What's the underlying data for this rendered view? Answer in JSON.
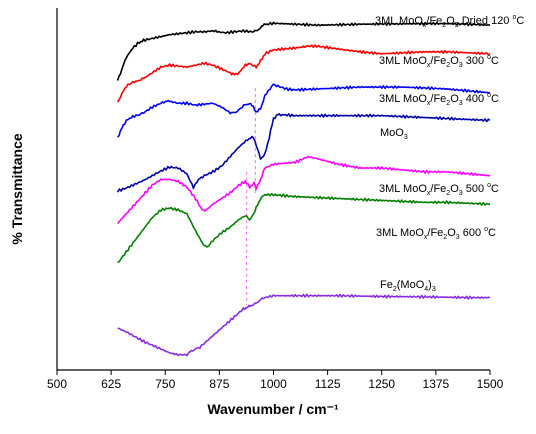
{
  "chart_data": {
    "type": "line",
    "xlabel": "Wavenumber / cm⁻¹",
    "ylabel": "% Transmittance",
    "xlim": [
      500,
      1500
    ],
    "x_ticks": [
      500,
      625,
      750,
      875,
      1000,
      1125,
      1250,
      1375,
      1500
    ],
    "y_ticks_shown": false,
    "grid": false,
    "reference_lines": [
      958,
      938
    ],
    "series": [
      {
        "name": "3ML MoOx/Fe2O3 Dried 120 °C",
        "label_text": [
          "3ML MoO",
          "x",
          "/Fe",
          "2",
          "O",
          "3",
          " Dried 120 ",
          "o",
          "C"
        ],
        "color": "#000000",
        "x": [
          640,
          650,
          660,
          675,
          690,
          700,
          720,
          740,
          760,
          780,
          800,
          820,
          840,
          860,
          870,
          890,
          910,
          930,
          950,
          960,
          970,
          975,
          985,
          1000,
          1050,
          1100,
          1150,
          1200,
          1250,
          1300,
          1350,
          1400,
          1450,
          1500
        ],
        "y": [
          0.7,
          0.76,
          0.82,
          0.87,
          0.9,
          0.91,
          0.92,
          0.93,
          0.94,
          0.945,
          0.95,
          0.955,
          0.955,
          0.96,
          0.955,
          0.95,
          0.955,
          0.96,
          0.955,
          0.96,
          0.975,
          0.99,
          0.995,
          1.0,
          0.995,
          0.99,
          0.992,
          0.995,
          0.996,
          0.997,
          0.998,
          0.998,
          0.995,
          0.99
        ]
      },
      {
        "name": "3ML MoOx/Fe2O3 300 °C",
        "label_text": [
          "3ML MoO",
          "x",
          "/Fe",
          "2",
          "O",
          "3",
          " 300 ",
          "o",
          "C"
        ],
        "color": "#ff0000",
        "x": [
          640,
          650,
          660,
          675,
          690,
          700,
          720,
          740,
          760,
          780,
          800,
          820,
          840,
          860,
          880,
          900,
          910,
          920,
          935,
          945,
          950,
          960,
          970,
          980,
          1000,
          1050,
          1080,
          1100,
          1150,
          1200,
          1250,
          1300,
          1350,
          1400,
          1450,
          1500
        ],
        "y": [
          0.585,
          0.63,
          0.67,
          0.69,
          0.7,
          0.71,
          0.74,
          0.77,
          0.78,
          0.775,
          0.77,
          0.78,
          0.79,
          0.78,
          0.76,
          0.74,
          0.73,
          0.74,
          0.78,
          0.79,
          0.78,
          0.77,
          0.8,
          0.84,
          0.86,
          0.87,
          0.88,
          0.88,
          0.865,
          0.85,
          0.84,
          0.845,
          0.85,
          0.85,
          0.845,
          0.84
        ]
      },
      {
        "name": "3ML MoOx/Fe2O3 400 °C",
        "label_text": [
          "3ML MoO",
          "x",
          "/Fe",
          "2",
          "O",
          "3",
          " 400 ",
          "o",
          "C"
        ],
        "color": "#0000ff",
        "x": [
          640,
          650,
          660,
          675,
          690,
          700,
          720,
          740,
          750,
          760,
          780,
          800,
          820,
          840,
          860,
          880,
          900,
          910,
          920,
          935,
          945,
          950,
          960,
          970,
          980,
          1000,
          1010,
          1030,
          1050,
          1100,
          1150,
          1200,
          1250,
          1300,
          1350,
          1400,
          1450,
          1500
        ],
        "y": [
          0.4,
          0.45,
          0.49,
          0.51,
          0.52,
          0.53,
          0.56,
          0.58,
          0.59,
          0.59,
          0.58,
          0.58,
          0.57,
          0.575,
          0.58,
          0.56,
          0.53,
          0.53,
          0.545,
          0.575,
          0.575,
          0.57,
          0.535,
          0.55,
          0.62,
          0.68,
          0.67,
          0.655,
          0.65,
          0.655,
          0.66,
          0.665,
          0.665,
          0.665,
          0.66,
          0.655,
          0.645,
          0.635
        ]
      },
      {
        "name": "MoO3",
        "label_text": [
          "MoO",
          "3"
        ],
        "color": "#0000aa",
        "x": [
          640,
          660,
          680,
          700,
          720,
          740,
          760,
          780,
          800,
          808,
          815,
          820,
          830,
          840,
          860,
          880,
          900,
          920,
          940,
          950,
          955,
          960,
          970,
          980,
          990,
          1000,
          1010,
          1020,
          1050,
          1100,
          1150,
          1200,
          1250,
          1300,
          1350,
          1400,
          1450,
          1500
        ],
        "y": [
          0.12,
          0.135,
          0.155,
          0.175,
          0.2,
          0.225,
          0.245,
          0.24,
          0.21,
          0.17,
          0.14,
          0.16,
          0.185,
          0.2,
          0.22,
          0.25,
          0.3,
          0.35,
          0.39,
          0.4,
          0.395,
          0.36,
          0.29,
          0.31,
          0.4,
          0.5,
          0.52,
          0.52,
          0.515,
          0.515,
          0.515,
          0.515,
          0.515,
          0.51,
          0.505,
          0.5,
          0.495,
          0.49
        ]
      },
      {
        "name": "3ML MoOx/Fe2O3 500 °C",
        "label_text": [
          "3ML MoO",
          "x",
          "/Fe",
          "2",
          "O",
          "3",
          " 500 ",
          "o",
          "C"
        ],
        "color": "#ff00ff",
        "x": [
          640,
          660,
          680,
          700,
          720,
          740,
          760,
          780,
          800,
          820,
          835,
          845,
          860,
          880,
          900,
          920,
          935,
          945,
          955,
          960,
          970,
          980,
          1000,
          1050,
          1080,
          1100,
          1150,
          1200,
          1250,
          1300,
          1350,
          1400,
          1450,
          1500
        ],
        "y": [
          -0.05,
          0.0,
          0.05,
          0.1,
          0.15,
          0.18,
          0.18,
          0.17,
          0.14,
          0.08,
          0.02,
          0.02,
          0.05,
          0.08,
          0.11,
          0.15,
          0.17,
          0.14,
          0.16,
          0.13,
          0.18,
          0.24,
          0.26,
          0.27,
          0.3,
          0.29,
          0.26,
          0.24,
          0.24,
          0.23,
          0.22,
          0.22,
          0.21,
          0.2
        ]
      },
      {
        "name": "3ML MoOx/Fe2O3 600 °C",
        "label_text": [
          "3ML MoO",
          "x",
          "/Fe",
          "2",
          "O",
          "3",
          " 600 ",
          "o",
          "C"
        ],
        "color": "#008000",
        "x": [
          640,
          660,
          680,
          700,
          720,
          740,
          760,
          780,
          800,
          820,
          840,
          850,
          860,
          880,
          900,
          920,
          935,
          945,
          955,
          960,
          970,
          980,
          1000,
          1050,
          1100,
          1150,
          1200,
          1250,
          1300,
          1350,
          1400,
          1450,
          1500
        ],
        "y": [
          -0.26,
          -0.2,
          -0.14,
          -0.08,
          -0.02,
          0.02,
          0.03,
          0.02,
          0.0,
          -0.09,
          -0.17,
          -0.17,
          -0.14,
          -0.1,
          -0.07,
          -0.03,
          -0.01,
          -0.03,
          0.0,
          0.03,
          0.08,
          0.1,
          0.1,
          0.09,
          0.085,
          0.08,
          0.075,
          0.07,
          0.065,
          0.06,
          0.06,
          0.055,
          0.05
        ]
      },
      {
        "name": "Fe2(MoO4)3",
        "label_text": [
          "Fe",
          "2",
          "(MoO",
          "4",
          ")",
          "3"
        ],
        "color": "#8a2be2",
        "x": [
          640,
          660,
          680,
          700,
          720,
          740,
          760,
          780,
          800,
          810,
          820,
          830,
          850,
          870,
          890,
          910,
          930,
          940,
          950,
          960,
          970,
          980,
          1000,
          1050,
          1100,
          1150,
          1200,
          1250,
          1300,
          1350,
          1400,
          1450,
          1500
        ],
        "y": [
          -0.6,
          -0.62,
          -0.645,
          -0.67,
          -0.69,
          -0.71,
          -0.73,
          -0.74,
          -0.74,
          -0.72,
          -0.71,
          -0.7,
          -0.66,
          -0.62,
          -0.58,
          -0.54,
          -0.5,
          -0.49,
          -0.48,
          -0.47,
          -0.45,
          -0.44,
          -0.43,
          -0.43,
          -0.43,
          -0.43,
          -0.432,
          -0.434,
          -0.435,
          -0.436,
          -0.438,
          -0.44,
          -0.44
        ]
      }
    ]
  }
}
